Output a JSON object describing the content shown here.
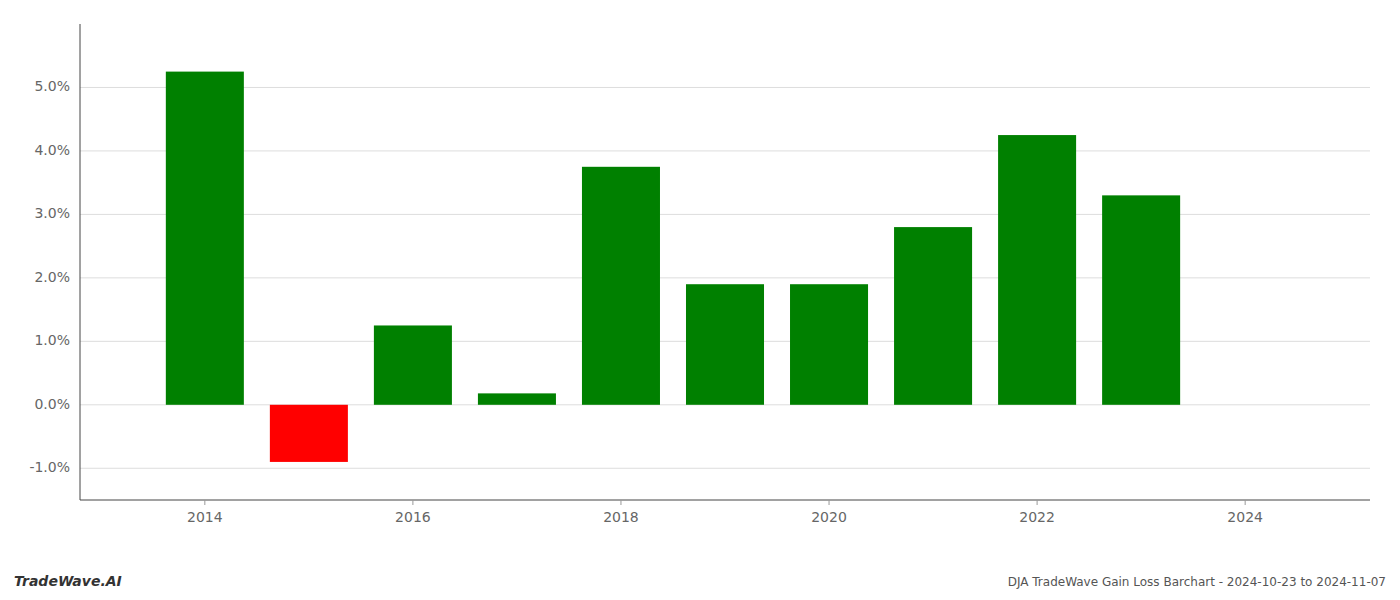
{
  "chart_data": {
    "type": "bar",
    "title": "DJA TradeWave Gain Loss Barchart - 2024-10-23 to 2024-11-07",
    "annotations": [
      "TradeWave.AI"
    ],
    "x": [
      2014,
      2015,
      2016,
      2017,
      2018,
      2019,
      2020,
      2021,
      2022,
      2023
    ],
    "values": [
      5.25,
      -0.9,
      1.25,
      0.18,
      3.75,
      1.9,
      1.9,
      2.8,
      4.25,
      3.3
    ],
    "colors": [
      "#008000",
      "#ff0000",
      "#008000",
      "#008000",
      "#008000",
      "#008000",
      "#008000",
      "#008000",
      "#008000",
      "#008000"
    ],
    "xlim": [
      2012.8,
      2025.2
    ],
    "xticks": [
      2014,
      2016,
      2018,
      2020,
      2022,
      2024
    ],
    "ylim": [
      -1.5,
      6.0
    ],
    "yticks": [
      {
        "value": -1.0,
        "label": "-1.0%"
      },
      {
        "value": 0.0,
        "label": "0.0%"
      },
      {
        "value": 1.0,
        "label": "1.0%"
      },
      {
        "value": 2.0,
        "label": "2.0%"
      },
      {
        "value": 3.0,
        "label": "3.0%"
      },
      {
        "value": 4.0,
        "label": "4.0%"
      },
      {
        "value": 5.0,
        "label": "5.0%"
      }
    ],
    "grid": true
  }
}
